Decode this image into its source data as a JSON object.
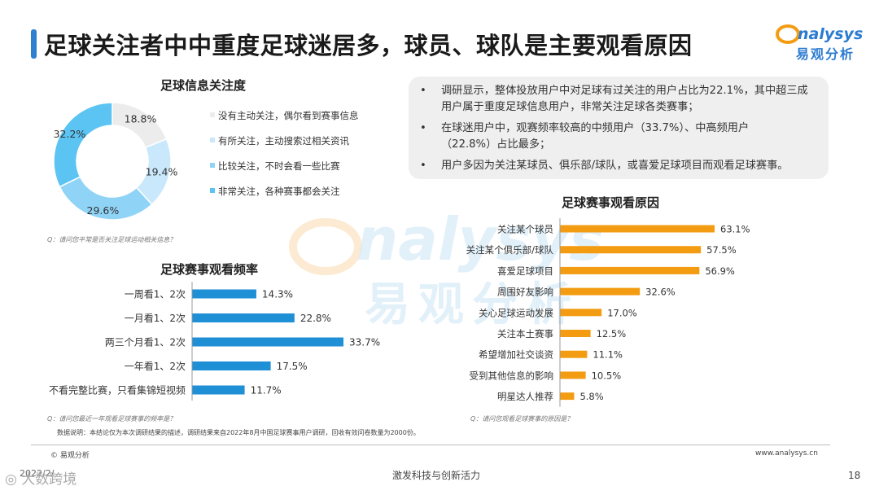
{
  "page": {
    "title": "足球关注者中中重度足球迷居多，球员、球队是主要观看原因",
    "logo_text_en": "nalysys",
    "logo_text_cn": "易观分析",
    "page_number": "18",
    "slogan": "激发科技与创新活力",
    "copyright": "© 易观分析",
    "website": "www.analysys.cn",
    "date": "2022/2/",
    "watermark_corner": "大数跨境",
    "data_note": "数据说明：本结论仅为本次调研结果的描述，调研结果来自2022年8月中国足球赛事用户调研，回收有效问卷数量为2000份。"
  },
  "summary": {
    "bullets": [
      "调研显示，整体投放用户中对足球有过关注的用户占比为22.1%，其中超三成用户属于重度足球信息用户，非常关注足球各类赛事；",
      "在球迷用户中，观赛频率较高的中频用户（33.7%）、中高频用户（22.8%）占比最多；",
      "用户多因为关注某球员、俱乐部/球队，或喜爱足球项目而观看足球赛事。"
    ]
  },
  "chart_data": [
    {
      "type": "pie",
      "title": "足球信息关注度",
      "question": "Q：请问您平常是否关注足球运动相关信息？",
      "categories": [
        "没有主动关注，偶尔看到赛事信息",
        "有所关注，主动搜索过相关资讯",
        "比较关注，不时会看一些比赛",
        "非常关注，各种赛事都会关注"
      ],
      "values": [
        18.8,
        19.4,
        29.6,
        32.2
      ],
      "value_labels": [
        "18.8%",
        "19.4%",
        "29.6%",
        "32.2%"
      ],
      "colors": [
        "#ececec",
        "#c9e8fb",
        "#8fd3f7",
        "#5bc4f3"
      ],
      "legend_position": "right"
    },
    {
      "type": "bar",
      "orientation": "horizontal",
      "title": "足球赛事观看频率",
      "question": "Q：请问您最近一年观看足球赛事的频率是？",
      "categories": [
        "一周看1、2次",
        "一月看1、2次",
        "两三个月看1、2次",
        "一年看1、2次",
        "不看完整比赛，只看集锦短视频"
      ],
      "values": [
        14.3,
        22.8,
        33.7,
        17.5,
        11.7
      ],
      "value_labels": [
        "14.3%",
        "22.8%",
        "33.7%",
        "17.5%",
        "11.7%"
      ],
      "color": "#1f8fd6"
    },
    {
      "type": "bar",
      "orientation": "horizontal",
      "title": "足球赛事观看原因",
      "question": "Q：请问您观看足球赛事的原因是？",
      "categories": [
        "关注某个球员",
        "关注某个俱乐部/球队",
        "喜爱足球项目",
        "周围好友影响",
        "关心足球运动发展",
        "关注本土赛事",
        "希望增加社交谈资",
        "受到其他信息的影响",
        "明星达人推荐"
      ],
      "values": [
        63.1,
        57.5,
        56.9,
        32.6,
        17.0,
        12.5,
        11.1,
        10.5,
        5.8
      ],
      "value_labels": [
        "63.1%",
        "57.5%",
        "56.9%",
        "32.6%",
        "17.0%",
        "12.5%",
        "11.1%",
        "10.5%",
        "5.8%"
      ],
      "color": "#f39c12"
    }
  ]
}
